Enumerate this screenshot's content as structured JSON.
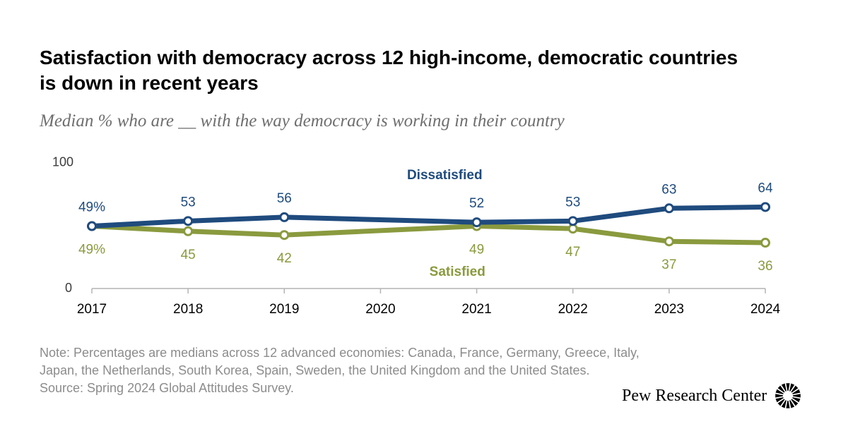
{
  "header": {
    "title": "Satisfaction with democracy across 12 high-income, democratic countries is down in recent years",
    "subtitle": "Median % who are __ with the way democracy is working in their country"
  },
  "chart_data": {
    "type": "line",
    "x": [
      "2017",
      "2018",
      "2019",
      "2021",
      "2022",
      "2023",
      "2024"
    ],
    "x_ticks": [
      "2017",
      "2018",
      "2019",
      "2020",
      "2021",
      "2022",
      "2023",
      "2024"
    ],
    "xlim": [
      2017,
      2024
    ],
    "ylim": [
      0,
      100
    ],
    "y_tick_labels": [
      "0",
      "100"
    ],
    "grid": false,
    "legend": "inline labels",
    "series": [
      {
        "name": "Dissatisfied",
        "color": "#1f4b7e",
        "values": [
          49,
          53,
          56,
          52,
          53,
          63,
          64
        ],
        "labels": [
          "49%",
          "53",
          "56",
          "52",
          "53",
          "63",
          "64"
        ]
      },
      {
        "name": "Satisfied",
        "color": "#8a9a3e",
        "values": [
          49,
          45,
          42,
          49,
          47,
          37,
          36
        ],
        "labels": [
          "49%",
          "45",
          "42",
          "49",
          "47",
          "37",
          "36"
        ]
      }
    ]
  },
  "footer": {
    "note_line1": "Note: Percentages are medians across 12 advanced economies: Canada, France, Germany, Greece, Italy,",
    "note_line2": "Japan, the Netherlands, South Korea, Spain, Sweden, the United Kingdom and the United States.",
    "source": "Source: Spring 2024 Global Attitudes Survey.",
    "brand": "Pew Research Center",
    "brand_icon": "pew-sunburst-logo"
  }
}
